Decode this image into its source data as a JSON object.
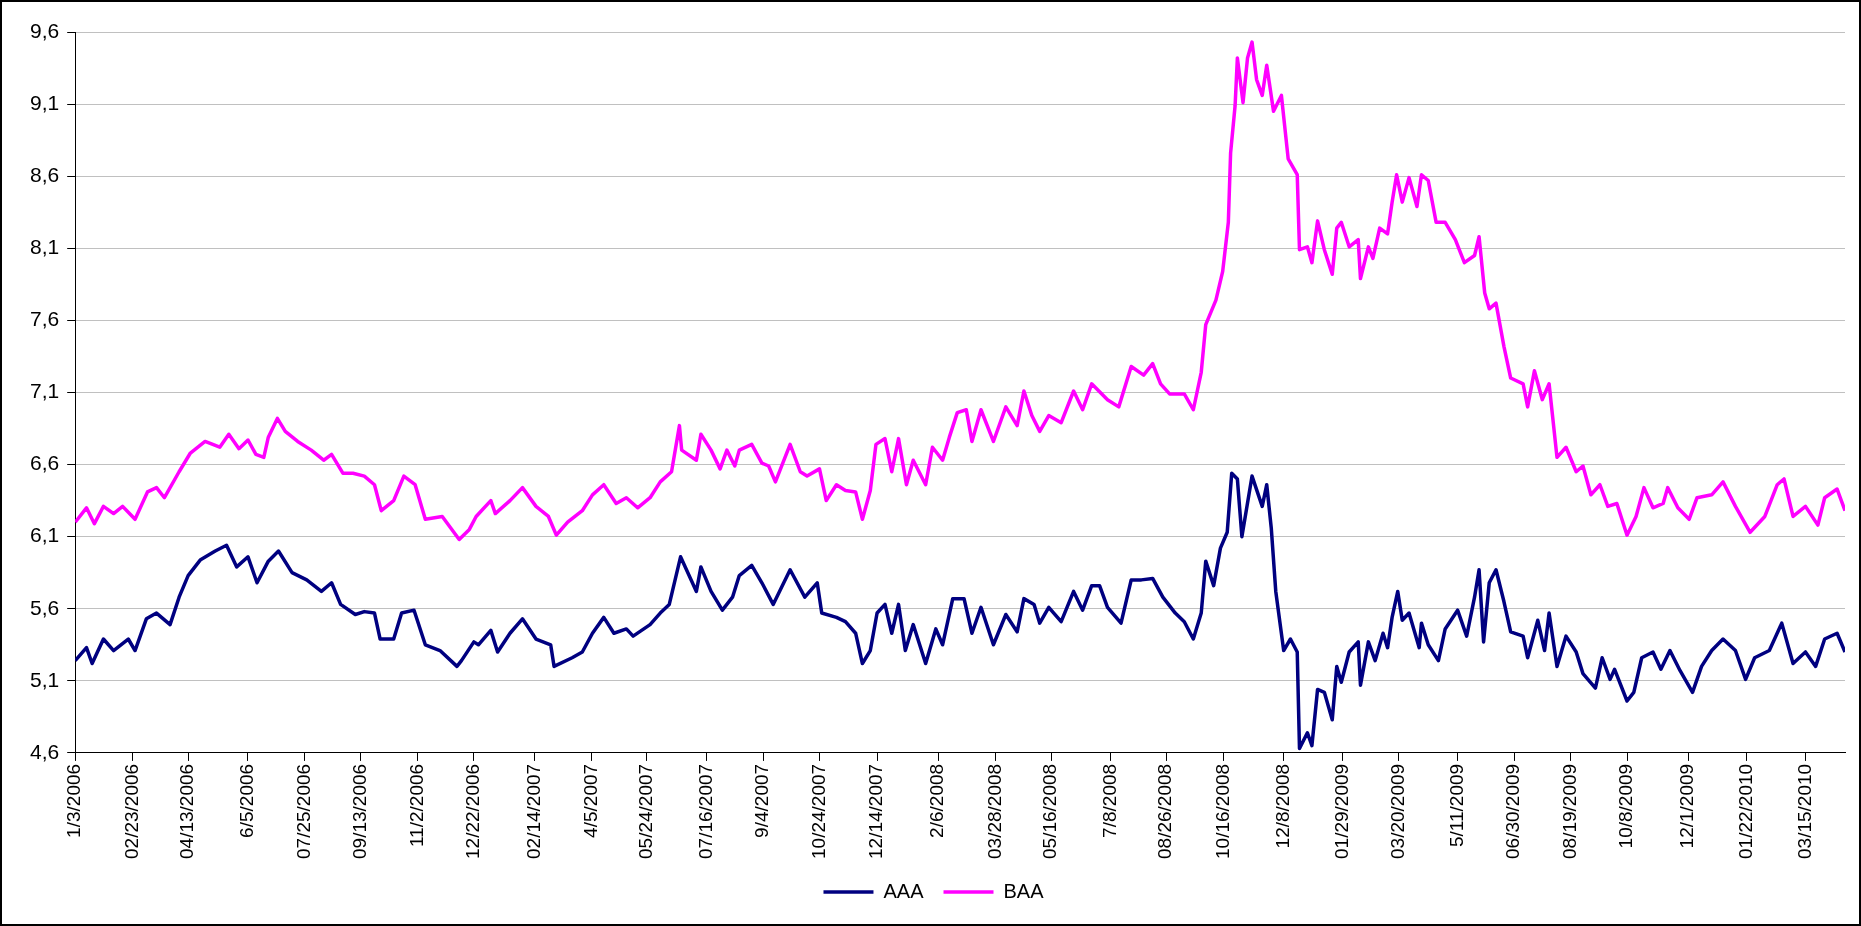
{
  "chart_data": {
    "type": "line",
    "xlim": [
      "2006-01-03",
      "2010-04-19"
    ],
    "xticks": [
      {
        "value": "2006-01-03",
        "label": "1/3/2006"
      },
      {
        "value": "2006-02-23",
        "label": "02/23/2006"
      },
      {
        "value": "2006-04-13",
        "label": "04/13/2006"
      },
      {
        "value": "2006-06-05",
        "label": "6/5/2006"
      },
      {
        "value": "2006-07-25",
        "label": "07/25/2006"
      },
      {
        "value": "2006-09-13",
        "label": "09/13/2006"
      },
      {
        "value": "2006-11-02",
        "label": "11/2/2006"
      },
      {
        "value": "2006-12-22",
        "label": "12/22/2006"
      },
      {
        "value": "2007-02-14",
        "label": "02/14/2007"
      },
      {
        "value": "2007-04-05",
        "label": "4/5/2007"
      },
      {
        "value": "2007-05-24",
        "label": "05/24/2007"
      },
      {
        "value": "2007-07-16",
        "label": "07/16/2007"
      },
      {
        "value": "2007-09-04",
        "label": "9/4/2007"
      },
      {
        "value": "2007-10-24",
        "label": "10/24/2007"
      },
      {
        "value": "2007-12-14",
        "label": "12/14/2007"
      },
      {
        "value": "2008-02-06",
        "label": "2/6/2008"
      },
      {
        "value": "2008-03-28",
        "label": "03/28/2008"
      },
      {
        "value": "2008-05-16",
        "label": "05/16/2008"
      },
      {
        "value": "2008-07-08",
        "label": "7/8/2008"
      },
      {
        "value": "2008-08-26",
        "label": "08/26/2008"
      },
      {
        "value": "2008-10-16",
        "label": "10/16/2008"
      },
      {
        "value": "2008-12-08",
        "label": "12/8/2008"
      },
      {
        "value": "2009-01-29",
        "label": "01/29/2009"
      },
      {
        "value": "2009-03-20",
        "label": "03/20/2009"
      },
      {
        "value": "2009-05-11",
        "label": "5/11/2009"
      },
      {
        "value": "2009-06-30",
        "label": "06/30/2009"
      },
      {
        "value": "2009-08-19",
        "label": "08/19/2009"
      },
      {
        "value": "2009-10-08",
        "label": "10/8/2009"
      },
      {
        "value": "2009-12-01",
        "label": "12/1/2009"
      },
      {
        "value": "2010-01-22",
        "label": "01/22/2010"
      },
      {
        "value": "2010-03-15",
        "label": "03/15/2010"
      }
    ],
    "ylim": [
      4.6,
      9.6
    ],
    "yticks": [
      {
        "value": 4.6,
        "label": "4,6"
      },
      {
        "value": 5.1,
        "label": "5,1"
      },
      {
        "value": 5.6,
        "label": "5,6"
      },
      {
        "value": 6.1,
        "label": "6,1"
      },
      {
        "value": 6.6,
        "label": "6,6"
      },
      {
        "value": 7.1,
        "label": "7,1"
      },
      {
        "value": 7.6,
        "label": "7,6"
      },
      {
        "value": 8.1,
        "label": "8,1"
      },
      {
        "value": 8.6,
        "label": "8,6"
      },
      {
        "value": 9.1,
        "label": "9,1"
      },
      {
        "value": 9.6,
        "label": "9,6"
      }
    ],
    "grid": "y",
    "legend": "bottom",
    "marker": "none",
    "line_style": "solid",
    "series": [
      {
        "name": "AAA",
        "color": "#000080",
        "x": [
          "2006-01-03",
          "2006-01-13",
          "2006-01-18",
          "2006-01-28",
          "2006-02-06",
          "2006-02-19",
          "2006-02-25",
          "2006-03-07",
          "2006-03-16",
          "2006-03-28",
          "2006-04-05",
          "2006-04-13",
          "2006-04-24",
          "2006-05-07",
          "2006-05-17",
          "2006-05-26",
          "2006-06-05",
          "2006-06-13",
          "2006-06-23",
          "2006-07-02",
          "2006-07-14",
          "2006-07-27",
          "2006-08-09",
          "2006-08-18",
          "2006-08-26",
          "2006-09-08",
          "2006-09-16",
          "2006-09-25",
          "2006-09-30",
          "2006-10-12",
          "2006-10-19",
          "2006-10-30",
          "2006-11-09",
          "2006-11-22",
          "2006-12-07",
          "2006-12-11",
          "2006-12-22",
          "2006-12-26",
          "2007-01-06",
          "2007-01-12",
          "2007-01-23",
          "2007-02-03",
          "2007-02-15",
          "2007-02-28",
          "2007-03-03",
          "2007-03-19",
          "2007-03-28",
          "2007-04-06",
          "2007-04-16",
          "2007-04-25",
          "2007-05-06",
          "2007-05-12",
          "2007-05-27",
          "2007-06-05",
          "2007-06-13",
          "2007-06-23",
          "2007-07-07",
          "2007-07-11",
          "2007-07-20",
          "2007-07-30",
          "2007-08-08",
          "2007-08-14",
          "2007-08-25",
          "2007-09-03",
          "2007-09-13",
          "2007-09-28",
          "2007-10-11",
          "2007-10-22",
          "2007-10-26",
          "2007-11-08",
          "2007-11-16",
          "2007-11-25",
          "2007-12-01",
          "2007-12-08",
          "2007-12-14",
          "2007-12-21",
          "2007-12-27",
          "2008-01-02",
          "2008-01-08",
          "2008-01-15",
          "2008-01-26",
          "2008-02-04",
          "2008-02-10",
          "2008-02-19",
          "2008-02-29",
          "2008-03-07",
          "2008-03-15",
          "2008-03-26",
          "2008-04-06",
          "2008-04-16",
          "2008-04-22",
          "2008-05-01",
          "2008-05-06",
          "2008-05-14",
          "2008-05-25",
          "2008-06-05",
          "2008-06-13",
          "2008-06-21",
          "2008-06-28",
          "2008-07-05",
          "2008-07-17",
          "2008-07-26",
          "2008-08-04",
          "2008-08-14",
          "2008-08-23",
          "2008-09-03",
          "2008-09-11",
          "2008-09-19",
          "2008-09-26",
          "2008-09-30",
          "2008-10-07",
          "2008-10-13",
          "2008-10-19",
          "2008-10-23",
          "2008-10-28",
          "2008-11-01",
          "2008-11-10",
          "2008-11-19",
          "2008-11-23",
          "2008-11-27",
          "2008-12-01",
          "2008-12-08",
          "2008-12-14",
          "2008-12-20",
          "2008-12-22",
          "2008-12-29",
          "2009-01-02",
          "2009-01-07",
          "2009-01-13",
          "2009-01-20",
          "2009-01-24",
          "2009-01-28",
          "2009-02-04",
          "2009-02-12",
          "2009-02-14",
          "2009-02-21",
          "2009-02-27",
          "2009-03-06",
          "2009-03-10",
          "2009-03-14",
          "2009-03-19",
          "2009-03-23",
          "2009-03-29",
          "2009-04-07",
          "2009-04-09",
          "2009-04-15",
          "2009-04-24",
          "2009-04-30",
          "2009-05-11",
          "2009-05-19",
          "2009-05-26",
          "2009-05-30",
          "2009-06-03",
          "2009-06-08",
          "2009-06-14",
          "2009-06-21",
          "2009-06-27",
          "2009-07-08",
          "2009-07-12",
          "2009-07-21",
          "2009-07-27",
          "2009-07-31",
          "2009-08-07",
          "2009-08-15",
          "2009-08-24",
          "2009-08-30",
          "2009-09-10",
          "2009-09-16",
          "2009-09-23",
          "2009-09-27",
          "2009-10-08",
          "2009-10-14",
          "2009-10-21",
          "2009-10-31",
          "2009-11-07",
          "2009-11-15",
          "2009-11-24",
          "2009-12-05",
          "2009-12-13",
          "2009-12-22",
          "2010-01-01",
          "2010-01-12",
          "2010-01-21",
          "2010-01-29",
          "2010-02-11",
          "2010-02-22",
          "2010-03-04",
          "2010-03-15",
          "2010-03-24",
          "2010-04-01",
          "2010-04-12",
          "2010-04-19"
        ],
        "values": [
          5.24,
          5.33,
          5.22,
          5.39,
          5.31,
          5.39,
          5.31,
          5.53,
          5.57,
          5.49,
          5.68,
          5.83,
          5.94,
          6.0,
          6.04,
          5.89,
          5.96,
          5.78,
          5.93,
          6.0,
          5.85,
          5.8,
          5.72,
          5.78,
          5.63,
          5.56,
          5.58,
          5.57,
          5.39,
          5.39,
          5.57,
          5.59,
          5.35,
          5.31,
          5.2,
          5.24,
          5.37,
          5.35,
          5.45,
          5.3,
          5.43,
          5.53,
          5.39,
          5.35,
          5.2,
          5.26,
          5.3,
          5.43,
          5.54,
          5.43,
          5.46,
          5.41,
          5.49,
          5.57,
          5.63,
          5.96,
          5.72,
          5.89,
          5.72,
          5.59,
          5.68,
          5.83,
          5.9,
          5.78,
          5.63,
          5.87,
          5.68,
          5.78,
          5.57,
          5.54,
          5.51,
          5.43,
          5.22,
          5.31,
          5.57,
          5.63,
          5.43,
          5.63,
          5.31,
          5.49,
          5.22,
          5.46,
          5.35,
          5.67,
          5.67,
          5.43,
          5.61,
          5.35,
          5.56,
          5.44,
          5.67,
          5.63,
          5.5,
          5.61,
          5.51,
          5.72,
          5.59,
          5.76,
          5.76,
          5.61,
          5.5,
          5.8,
          5.8,
          5.81,
          5.68,
          5.57,
          5.51,
          5.39,
          5.57,
          5.93,
          5.76,
          6.02,
          6.13,
          6.54,
          6.5,
          6.1,
          6.52,
          6.31,
          6.46,
          6.16,
          5.72,
          5.31,
          5.39,
          5.3,
          4.63,
          4.74,
          4.65,
          5.04,
          5.02,
          4.83,
          5.2,
          5.09,
          5.3,
          5.37,
          5.07,
          5.37,
          5.24,
          5.43,
          5.33,
          5.54,
          5.72,
          5.52,
          5.57,
          5.33,
          5.5,
          5.35,
          5.24,
          5.46,
          5.59,
          5.41,
          5.68,
          5.87,
          5.37,
          5.78,
          5.87,
          5.65,
          5.44,
          5.41,
          5.26,
          5.52,
          5.31,
          5.57,
          5.2,
          5.41,
          5.3,
          5.15,
          5.05,
          5.26,
          5.11,
          5.18,
          4.96,
          5.02,
          5.26,
          5.3,
          5.18,
          5.31,
          5.17,
          5.02,
          5.2,
          5.31,
          5.39,
          5.31,
          5.11,
          5.26,
          5.31,
          5.5,
          5.22,
          5.3,
          5.2,
          5.39,
          5.43,
          5.3
        ]
      },
      {
        "name": "BAA",
        "color": "#ff00ff",
        "x": [
          "2006-01-03",
          "2006-01-13",
          "2006-01-20",
          "2006-01-28",
          "2006-02-06",
          "2006-02-14",
          "2006-02-25",
          "2006-03-08",
          "2006-03-16",
          "2006-03-23",
          "2006-04-05",
          "2006-04-15",
          "2006-04-28",
          "2006-05-11",
          "2006-05-19",
          "2006-05-28",
          "2006-06-05",
          "2006-06-12",
          "2006-06-19",
          "2006-06-23",
          "2006-07-01",
          "2006-07-08",
          "2006-07-19",
          "2006-07-31",
          "2006-08-11",
          "2006-08-18",
          "2006-08-28",
          "2006-09-06",
          "2006-09-16",
          "2006-09-25",
          "2006-10-01",
          "2006-10-12",
          "2006-10-21",
          "2006-10-31",
          "2006-11-09",
          "2006-11-24",
          "2006-12-09",
          "2006-12-18",
          "2006-12-24",
          "2007-01-06",
          "2007-01-10",
          "2007-01-23",
          "2007-02-03",
          "2007-02-15",
          "2007-02-26",
          "2007-03-05",
          "2007-03-15",
          "2007-03-28",
          "2007-04-06",
          "2007-04-16",
          "2007-04-27",
          "2007-05-06",
          "2007-05-16",
          "2007-05-27",
          "2007-06-05",
          "2007-06-15",
          "2007-06-22",
          "2007-06-24",
          "2007-07-07",
          "2007-07-11",
          "2007-07-20",
          "2007-07-28",
          "2007-08-03",
          "2007-08-10",
          "2007-08-14",
          "2007-08-25",
          "2007-09-03",
          "2007-09-09",
          "2007-09-15",
          "2007-09-28",
          "2007-10-07",
          "2007-10-13",
          "2007-10-24",
          "2007-10-30",
          "2007-11-08",
          "2007-11-16",
          "2007-11-25",
          "2007-12-01",
          "2007-12-08",
          "2007-12-13",
          "2007-12-21",
          "2007-12-27",
          "2008-01-02",
          "2008-01-09",
          "2008-01-15",
          "2008-01-26",
          "2008-02-01",
          "2008-02-10",
          "2008-02-16",
          "2008-02-23",
          "2008-03-02",
          "2008-03-07",
          "2008-03-15",
          "2008-03-26",
          "2008-04-06",
          "2008-04-16",
          "2008-04-22",
          "2008-04-29",
          "2008-05-06",
          "2008-05-14",
          "2008-05-25",
          "2008-06-05",
          "2008-06-13",
          "2008-06-21",
          "2008-07-05",
          "2008-07-15",
          "2008-07-26",
          "2008-08-06",
          "2008-08-14",
          "2008-08-21",
          "2008-08-29",
          "2008-09-11",
          "2008-09-19",
          "2008-09-26",
          "2008-09-30",
          "2008-10-09",
          "2008-10-15",
          "2008-10-20",
          "2008-10-22",
          "2008-10-26",
          "2008-10-28",
          "2008-11-02",
          "2008-11-06",
          "2008-11-10",
          "2008-11-14",
          "2008-11-19",
          "2008-11-23",
          "2008-11-29",
          "2008-12-06",
          "2008-12-12",
          "2008-12-20",
          "2008-12-22",
          "2008-12-29",
          "2009-01-02",
          "2009-01-07",
          "2009-01-13",
          "2009-01-20",
          "2009-01-24",
          "2009-01-28",
          "2009-02-04",
          "2009-02-12",
          "2009-02-14",
          "2009-02-21",
          "2009-02-25",
          "2009-03-03",
          "2009-03-10",
          "2009-03-14",
          "2009-03-18",
          "2009-03-23",
          "2009-03-29",
          "2009-04-05",
          "2009-04-09",
          "2009-04-15",
          "2009-04-22",
          "2009-04-30",
          "2009-05-09",
          "2009-05-17",
          "2009-05-26",
          "2009-05-30",
          "2009-06-04",
          "2009-06-08",
          "2009-06-14",
          "2009-06-21",
          "2009-06-27",
          "2009-07-08",
          "2009-07-12",
          "2009-07-18",
          "2009-07-25",
          "2009-07-31",
          "2009-08-07",
          "2009-08-15",
          "2009-08-24",
          "2009-08-30",
          "2009-09-06",
          "2009-09-14",
          "2009-09-21",
          "2009-09-29",
          "2009-10-08",
          "2009-10-16",
          "2009-10-23",
          "2009-10-31",
          "2009-11-09",
          "2009-11-13",
          "2009-11-22",
          "2009-12-02",
          "2009-12-09",
          "2009-12-22",
          "2010-01-01",
          "2010-01-12",
          "2010-01-25",
          "2010-02-07",
          "2010-02-18",
          "2010-02-24",
          "2010-03-04",
          "2010-03-15",
          "2010-03-26",
          "2010-04-01",
          "2010-04-12",
          "2010-04-19"
        ],
        "values": [
          6.2,
          6.3,
          6.19,
          6.31,
          6.26,
          6.31,
          6.22,
          6.41,
          6.44,
          6.37,
          6.55,
          6.68,
          6.76,
          6.72,
          6.81,
          6.71,
          6.77,
          6.67,
          6.65,
          6.79,
          6.92,
          6.83,
          6.76,
          6.7,
          6.63,
          6.67,
          6.54,
          6.54,
          6.52,
          6.46,
          6.28,
          6.35,
          6.52,
          6.46,
          6.22,
          6.24,
          6.08,
          6.15,
          6.24,
          6.35,
          6.26,
          6.35,
          6.44,
          6.31,
          6.24,
          6.11,
          6.2,
          6.28,
          6.39,
          6.46,
          6.33,
          6.37,
          6.3,
          6.37,
          6.48,
          6.55,
          6.87,
          6.7,
          6.63,
          6.81,
          6.7,
          6.57,
          6.7,
          6.59,
          6.7,
          6.74,
          6.61,
          6.59,
          6.48,
          6.74,
          6.55,
          6.52,
          6.57,
          6.35,
          6.46,
          6.42,
          6.41,
          6.22,
          6.42,
          6.74,
          6.78,
          6.55,
          6.78,
          6.46,
          6.63,
          6.46,
          6.72,
          6.63,
          6.79,
          6.96,
          6.98,
          6.76,
          6.98,
          6.76,
          7.0,
          6.87,
          7.11,
          6.94,
          6.83,
          6.94,
          6.89,
          7.11,
          6.98,
          7.16,
          7.05,
          7.0,
          7.28,
          7.22,
          7.3,
          7.16,
          7.09,
          7.09,
          6.98,
          7.24,
          7.57,
          7.74,
          7.94,
          8.28,
          8.76,
          9.09,
          9.42,
          9.11,
          9.42,
          9.53,
          9.27,
          9.16,
          9.37,
          9.05,
          9.16,
          8.72,
          8.61,
          8.09,
          8.11,
          8.0,
          8.29,
          8.09,
          7.92,
          8.24,
          8.28,
          8.11,
          8.16,
          7.89,
          8.11,
          8.03,
          8.24,
          8.2,
          8.42,
          8.61,
          8.42,
          8.59,
          8.39,
          8.61,
          8.57,
          8.28,
          8.28,
          8.16,
          8.0,
          8.05,
          8.18,
          7.79,
          7.68,
          7.72,
          7.42,
          7.2,
          7.16,
          7.0,
          7.25,
          7.05,
          7.16,
          6.65,
          6.72,
          6.55,
          6.59,
          6.39,
          6.46,
          6.31,
          6.33,
          6.11,
          6.24,
          6.44,
          6.3,
          6.33,
          6.44,
          6.3,
          6.22,
          6.37,
          6.39,
          6.48,
          6.31,
          6.13,
          6.24,
          6.46,
          6.5,
          6.24,
          6.31,
          6.18,
          6.37,
          6.43,
          6.28
        ]
      }
    ]
  }
}
